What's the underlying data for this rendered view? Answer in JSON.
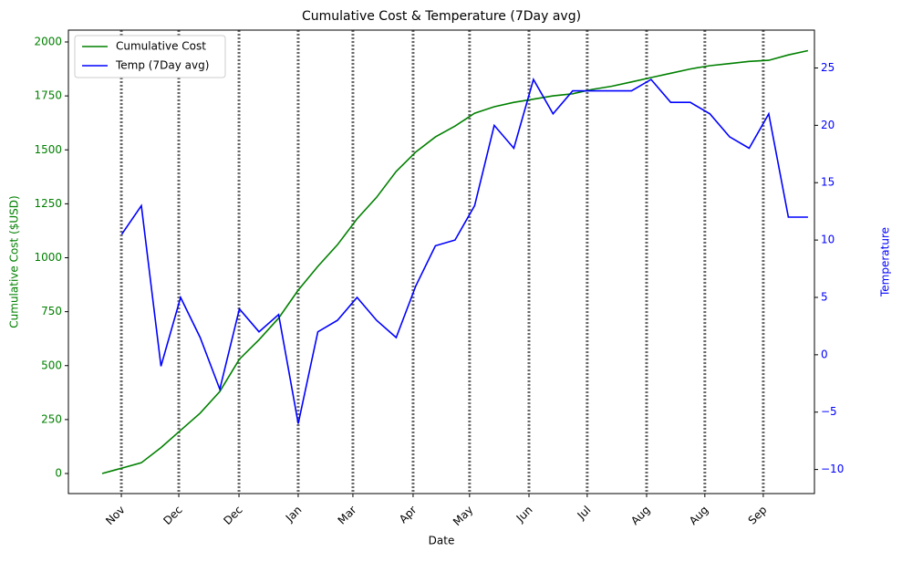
{
  "chart_data": {
    "type": "line",
    "title": "Cumulative Cost  &  Temperature (7Day avg)",
    "x_label": "Date",
    "y_label": "Cumulative Cost ($USD)",
    "y2_label": "Temperature",
    "x": [
      0,
      10,
      20,
      30,
      40,
      50,
      60,
      70,
      80,
      90,
      100,
      110,
      120,
      130,
      140,
      150,
      160,
      170,
      180,
      190,
      200,
      210,
      220,
      230,
      240,
      250,
      260,
      270,
      280,
      290,
      300,
      310,
      320,
      330,
      340,
      350,
      360
    ],
    "series": [
      {
        "name": "Cumulative Cost",
        "color": "#008000",
        "axis": "y",
        "values": [
          0,
          25,
          50,
          120,
          200,
          280,
          380,
          530,
          620,
          720,
          850,
          960,
          1060,
          1180,
          1280,
          1400,
          1490,
          1560,
          1610,
          1670,
          1700,
          1720,
          1735,
          1750,
          1760,
          1780,
          1795,
          1815,
          1835,
          1855,
          1875,
          1890,
          1900,
          1910,
          1915,
          1940,
          1960
        ]
      },
      {
        "name": "Temp (7Day avg)",
        "color": "#0000ff",
        "axis": "y2",
        "values": [
          null,
          10.5,
          13,
          -1,
          5,
          1.5,
          -3,
          4,
          2,
          3.5,
          -6,
          2,
          3,
          5,
          3,
          1.5,
          6,
          9.5,
          10,
          13,
          20,
          18,
          24,
          21,
          23,
          23,
          23,
          23,
          24,
          22,
          22,
          21,
          19,
          18,
          21,
          12,
          12
        ]
      }
    ],
    "xlim": [
      -17.2,
      363.3
    ],
    "xticks": [
      {
        "value": 9.8,
        "label": "Nov"
      },
      {
        "value": 39.1,
        "label": "Dec"
      },
      {
        "value": 69.8,
        "label": "Dec"
      },
      {
        "value": 100,
        "label": "Jan"
      },
      {
        "value": 127.9,
        "label": "Mar"
      },
      {
        "value": 158.6,
        "label": "Apr"
      },
      {
        "value": 187.4,
        "label": "May"
      },
      {
        "value": 217.7,
        "label": "Jun"
      },
      {
        "value": 247.4,
        "label": "Jul"
      },
      {
        "value": 277.7,
        "label": "Aug"
      },
      {
        "value": 307.4,
        "label": "Aug"
      },
      {
        "value": 337.2,
        "label": "Sep"
      }
    ],
    "ylim": [
      -93,
      2055
    ],
    "yticks": [
      0,
      250,
      500,
      750,
      1000,
      1250,
      1500,
      1750,
      2000
    ],
    "y2lim": [
      -12.1,
      28.3
    ],
    "y2ticks": [
      {
        "value": -10,
        "label": "−10"
      },
      {
        "value": -5,
        "label": "−5"
      },
      0,
      5,
      10,
      15,
      20,
      25
    ],
    "x_grid": true,
    "legend": "upper-left"
  }
}
